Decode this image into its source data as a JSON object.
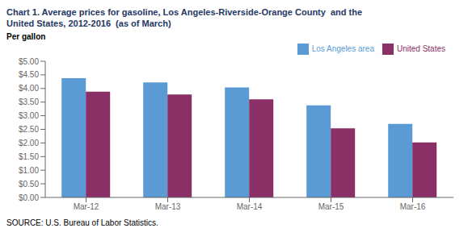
{
  "chart_data": {
    "type": "bar",
    "title": "Chart 1. Average prices for gasoline, Los Angeles-Riverside-Orange County  and the\nUnited States, 2012-2016  (as of March)",
    "ylabel": "Per gallon",
    "annotations": [
      "SOURCE: U.S. Bureau of Labor Statistics."
    ],
    "categories": [
      "Mar-12",
      "Mar-13",
      "Mar-14",
      "Mar-15",
      "Mar-16"
    ],
    "series": [
      {
        "name": "Los Angeles area",
        "color": "#5B9BD5",
        "values": [
          4.38,
          4.22,
          4.04,
          3.38,
          2.7
        ]
      },
      {
        "name": "United States",
        "color": "#8B3066",
        "values": [
          3.88,
          3.78,
          3.6,
          2.54,
          2.02
        ]
      }
    ],
    "ylim": [
      0,
      5.0
    ],
    "yticks": [
      {
        "value": 0.0,
        "label": "$0.00"
      },
      {
        "value": 0.5,
        "label": "$0.50"
      },
      {
        "value": 1.0,
        "label": "$1.00"
      },
      {
        "value": 1.5,
        "label": "$1.50"
      },
      {
        "value": 2.0,
        "label": "$2.00"
      },
      {
        "value": 2.5,
        "label": "$2.50"
      },
      {
        "value": 3.0,
        "label": "$3.00"
      },
      {
        "value": 3.5,
        "label": "$3.50"
      },
      {
        "value": 4.0,
        "label": "$4.00"
      },
      {
        "value": 4.5,
        "label": "$4.50"
      },
      {
        "value": 5.0,
        "label": "$5.00"
      }
    ],
    "grid": false,
    "legend": "upper right"
  }
}
